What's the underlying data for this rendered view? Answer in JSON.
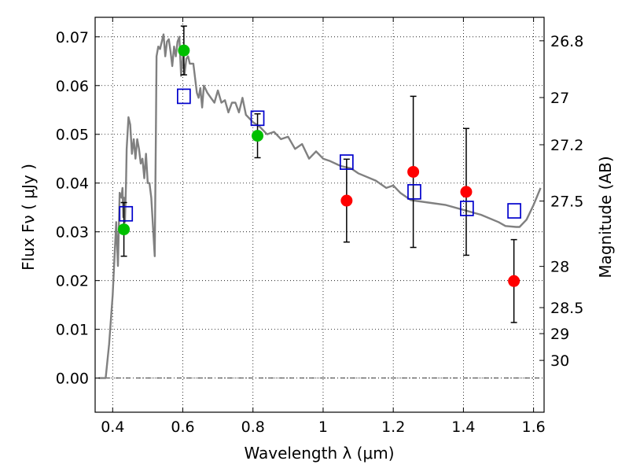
{
  "chart_data": {
    "type": "scatter",
    "title": "",
    "xlabel": "Wavelength  λ (μm)",
    "ylabel": "Flux  Fν  ( μJy )",
    "y2label": "Magnitude (AB)",
    "xlim": [
      0.35,
      1.63
    ],
    "ylim": [
      -0.007,
      0.074
    ],
    "grid": true,
    "xticks": [
      {
        "value": 0.4,
        "label": "0.4"
      },
      {
        "value": 0.6,
        "label": "0.6"
      },
      {
        "value": 0.8,
        "label": "0.8"
      },
      {
        "value": 1.0,
        "label": "1"
      },
      {
        "value": 1.2,
        "label": "1.2"
      },
      {
        "value": 1.4,
        "label": "1.4"
      },
      {
        "value": 1.6,
        "label": "1.6"
      }
    ],
    "yticks": [
      {
        "value": 0.0,
        "label": "0.00"
      },
      {
        "value": 0.01,
        "label": "0.01"
      },
      {
        "value": 0.02,
        "label": "0.02"
      },
      {
        "value": 0.03,
        "label": "0.03"
      },
      {
        "value": 0.04,
        "label": "0.04"
      },
      {
        "value": 0.05,
        "label": "0.05"
      },
      {
        "value": 0.06,
        "label": "0.06"
      },
      {
        "value": 0.07,
        "label": "0.07"
      }
    ],
    "y2ticks": [
      {
        "mag": 26.8,
        "label": "26.8"
      },
      {
        "mag": 27.0,
        "label": "27"
      },
      {
        "mag": 27.2,
        "label": "27.2"
      },
      {
        "mag": 27.5,
        "label": "27.5"
      },
      {
        "mag": 28.0,
        "label": "28"
      },
      {
        "mag": 28.5,
        "label": "28.5"
      },
      {
        "mag": 29.0,
        "label": "29"
      },
      {
        "mag": 30.0,
        "label": "30"
      }
    ],
    "model_spectrum": {
      "color": "#808080",
      "x": [
        0.36,
        0.38,
        0.385,
        0.39,
        0.4,
        0.41,
        0.415,
        0.42,
        0.425,
        0.428,
        0.43,
        0.432,
        0.435,
        0.438,
        0.44,
        0.445,
        0.45,
        0.455,
        0.46,
        0.465,
        0.47,
        0.475,
        0.48,
        0.485,
        0.49,
        0.495,
        0.5,
        0.505,
        0.51,
        0.515,
        0.52,
        0.523,
        0.525,
        0.53,
        0.535,
        0.54,
        0.545,
        0.55,
        0.555,
        0.56,
        0.565,
        0.57,
        0.575,
        0.58,
        0.585,
        0.59,
        0.595,
        0.6,
        0.605,
        0.61,
        0.615,
        0.62,
        0.63,
        0.64,
        0.645,
        0.65,
        0.655,
        0.66,
        0.67,
        0.68,
        0.69,
        0.7,
        0.71,
        0.72,
        0.73,
        0.74,
        0.75,
        0.76,
        0.77,
        0.78,
        0.8,
        0.82,
        0.84,
        0.86,
        0.88,
        0.9,
        0.92,
        0.94,
        0.96,
        0.98,
        1.0,
        1.02,
        1.05,
        1.08,
        1.1,
        1.15,
        1.18,
        1.2,
        1.22,
        1.25,
        1.3,
        1.35,
        1.4,
        1.45,
        1.5,
        1.52,
        1.55,
        1.56,
        1.58,
        1.6,
        1.62
      ],
      "y": [
        0.0,
        0.0,
        0.0035,
        0.007,
        0.017,
        0.032,
        0.023,
        0.038,
        0.037,
        0.039,
        0.033,
        0.037,
        0.032,
        0.04,
        0.047,
        0.0535,
        0.052,
        0.046,
        0.049,
        0.045,
        0.049,
        0.047,
        0.044,
        0.045,
        0.041,
        0.046,
        0.04,
        0.04,
        0.037,
        0.031,
        0.025,
        0.049,
        0.066,
        0.068,
        0.0675,
        0.069,
        0.0705,
        0.066,
        0.069,
        0.0695,
        0.067,
        0.064,
        0.068,
        0.066,
        0.069,
        0.07,
        0.062,
        0.066,
        0.0625,
        0.0655,
        0.066,
        0.0645,
        0.0645,
        0.0585,
        0.0575,
        0.0595,
        0.0555,
        0.06,
        0.0585,
        0.0575,
        0.0565,
        0.059,
        0.0565,
        0.057,
        0.0545,
        0.0565,
        0.0565,
        0.0545,
        0.0575,
        0.054,
        0.0525,
        0.0515,
        0.05,
        0.0505,
        0.049,
        0.0495,
        0.047,
        0.048,
        0.045,
        0.0465,
        0.045,
        0.0445,
        0.0435,
        0.043,
        0.042,
        0.0405,
        0.039,
        0.0395,
        0.038,
        0.0365,
        0.036,
        0.0355,
        0.0345,
        0.0335,
        0.032,
        0.0312,
        0.031,
        0.031,
        0.0325,
        0.0355,
        0.039
      ]
    },
    "series": [
      {
        "marker": "circle",
        "color": "#00c000",
        "points": [
          {
            "x": 0.432,
            "y": 0.0305,
            "err": 0.0055
          },
          {
            "x": 0.603,
            "y": 0.0672,
            "err": 0.005
          },
          {
            "x": 0.813,
            "y": 0.0497,
            "err": 0.0045
          }
        ]
      },
      {
        "marker": "circle",
        "color": "#ff0000",
        "points": [
          {
            "x": 1.067,
            "y": 0.0364,
            "err": 0.0085
          },
          {
            "x": 1.257,
            "y": 0.0423,
            "err": 0.0155
          },
          {
            "x": 1.408,
            "y": 0.0382,
            "err": 0.013
          },
          {
            "x": 1.544,
            "y": 0.0199,
            "err": 0.0085
          }
        ]
      },
      {
        "marker": "open-square",
        "color": "#0000cc",
        "points": [
          {
            "x": 0.438,
            "y": 0.0337
          },
          {
            "x": 0.603,
            "y": 0.0578
          },
          {
            "x": 0.813,
            "y": 0.0533
          },
          {
            "x": 1.067,
            "y": 0.0443
          },
          {
            "x": 1.26,
            "y": 0.0382
          },
          {
            "x": 1.41,
            "y": 0.0348
          },
          {
            "x": 1.545,
            "y": 0.0343
          }
        ]
      }
    ],
    "zero_line": {
      "y": 0.0,
      "style": "dash-dot"
    }
  }
}
